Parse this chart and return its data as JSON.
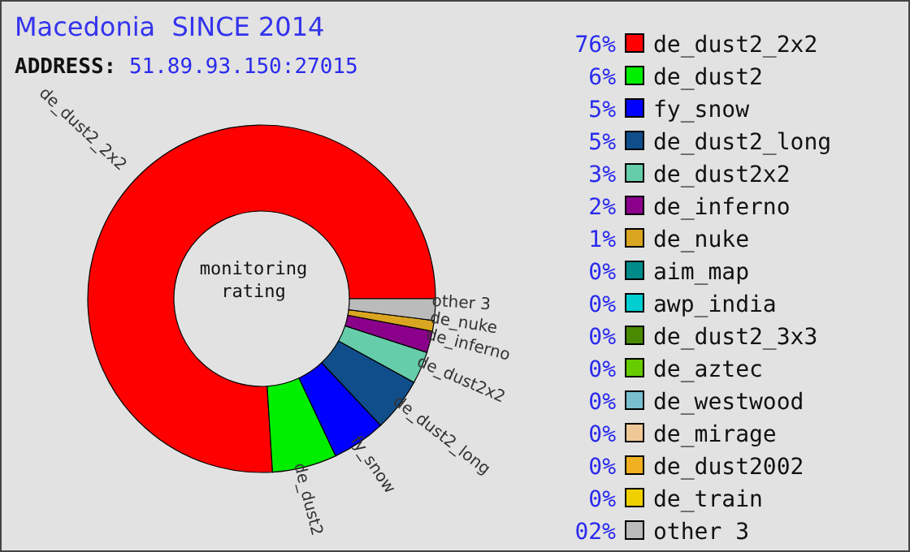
{
  "chart_data": {
    "type": "donut",
    "title": "Macedonia  SINCE 2014",
    "annotations": [
      "ADDRESS: 51.89.93.150:27015",
      "monitoring rating"
    ],
    "categories": [
      "de_dust2_2x2",
      "de_dust2",
      "fy_snow",
      "de_dust2_long",
      "de_dust2x2",
      "de_inferno",
      "de_nuke",
      "aim_map",
      "awp_india",
      "de_dust2_3x3",
      "de_aztec",
      "de_westwood",
      "de_mirage",
      "de_dust2002",
      "de_train",
      "other 3"
    ],
    "values": [
      76,
      6,
      5,
      5,
      3,
      2,
      1,
      0,
      0,
      0,
      0,
      0,
      0,
      0,
      0,
      2
    ],
    "value_labels": [
      "76%",
      "6%",
      "5%",
      "5%",
      "3%",
      "2%",
      "1%",
      "0%",
      "0%",
      "0%",
      "0%",
      "0%",
      "0%",
      "0%",
      "0%",
      "02%"
    ],
    "colors": [
      "#ff0000",
      "#00ee00",
      "#0000ff",
      "#104e8b",
      "#66cdaa",
      "#8b008b",
      "#daa520",
      "#008b8b",
      "#00ced1",
      "#4a8a00",
      "#66cc00",
      "#78c0d0",
      "#f0c898",
      "#f0b020",
      "#f0d000",
      "#bbbbbb"
    ],
    "legend": "right"
  }
}
